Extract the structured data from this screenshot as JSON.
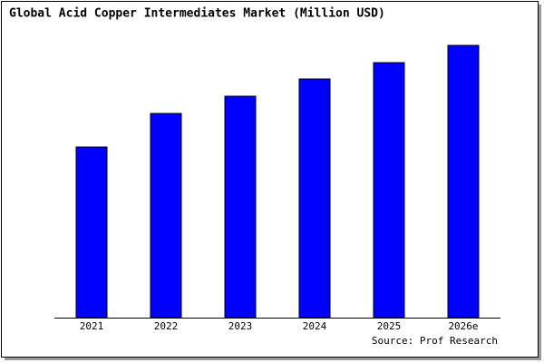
{
  "chart_data": {
    "type": "bar",
    "title": "Global Acid Copper Intermediates Market (Million USD)",
    "categories": [
      "2021",
      "2022",
      "2023",
      "2024",
      "2025",
      "2026e"
    ],
    "values": [
      188,
      225,
      244,
      263,
      281,
      300
    ],
    "color": "#0000ff",
    "source": "Source: Prof Research"
  }
}
